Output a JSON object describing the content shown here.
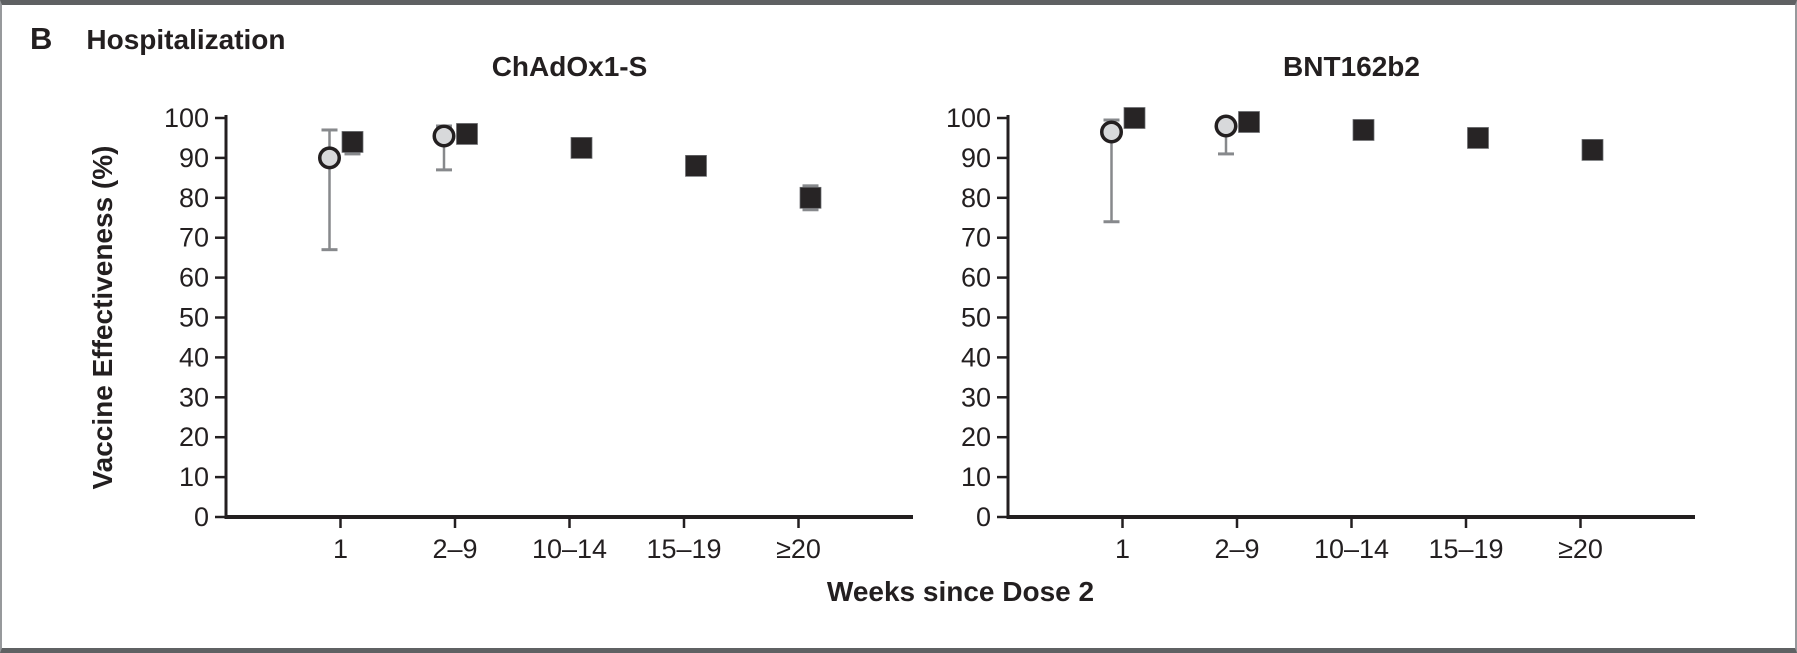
{
  "figure": {
    "panel_label": "B",
    "panel_title": "Hospitalization",
    "x_axis_label": "Weeks since Dose 2",
    "y_axis_label": "Vaccine Effectiveness (%)"
  },
  "colors": {
    "axis": "#231f20",
    "text": "#231f20",
    "error_bar": "#87898c",
    "circle_fill": "#d8d9db",
    "circle_stroke": "#231f20",
    "square_fill": "#272425",
    "square_stroke": "#6d6e71",
    "frame_border": "#5f6163"
  },
  "chart_data": [
    {
      "type": "scatter",
      "title": "ChAdOx1-S",
      "categories": [
        "1",
        "2–9",
        "10–14",
        "15–19",
        "≥20"
      ],
      "xlabel": "Weeks since Dose 2",
      "ylabel": "Vaccine Effectiveness (%)",
      "ylim": [
        0,
        100
      ],
      "ytick_step": 10,
      "grid": false,
      "legend": "none",
      "series": [
        {
          "name": "gray-circle",
          "marker": "circle",
          "points": [
            {
              "category": "1",
              "value": 90,
              "ci_low": 67,
              "ci_high": 97
            },
            {
              "category": "2–9",
              "value": 95.5,
              "ci_low": 87,
              "ci_high": 98
            }
          ]
        },
        {
          "name": "black-square",
          "marker": "square",
          "points": [
            {
              "category": "1",
              "value": 94,
              "ci_low": 91,
              "ci_high": 96
            },
            {
              "category": "2–9",
              "value": 96,
              "ci_low": 94,
              "ci_high": 98
            },
            {
              "category": "10–14",
              "value": 92.5,
              "ci_low": 90.5,
              "ci_high": 94.5
            },
            {
              "category": "15–19",
              "value": 88,
              "ci_low": 86,
              "ci_high": 90
            },
            {
              "category": "≥20",
              "value": 80,
              "ci_low": 77,
              "ci_high": 83
            }
          ]
        }
      ]
    },
    {
      "type": "scatter",
      "title": "BNT162b2",
      "categories": [
        "1",
        "2–9",
        "10–14",
        "15–19",
        "≥20"
      ],
      "xlabel": "Weeks since Dose 2",
      "ylabel": "Vaccine Effectiveness (%)",
      "ylim": [
        0,
        100
      ],
      "ytick_step": 10,
      "grid": false,
      "legend": "none",
      "series": [
        {
          "name": "gray-circle",
          "marker": "circle",
          "points": [
            {
              "category": "1",
              "value": 96.5,
              "ci_low": 74,
              "ci_high": 99.5
            },
            {
              "category": "2–9",
              "value": 98,
              "ci_low": 91,
              "ci_high": 99.5
            }
          ]
        },
        {
          "name": "black-square",
          "marker": "square",
          "points": [
            {
              "category": "1",
              "value": 100,
              "ci_low": 98.5,
              "ci_high": 100
            },
            {
              "category": "2–9",
              "value": 99,
              "ci_low": 97.5,
              "ci_high": 100
            },
            {
              "category": "10–14",
              "value": 97,
              "ci_low": 95,
              "ci_high": 99
            },
            {
              "category": "15–19",
              "value": 95,
              "ci_low": 93,
              "ci_high": 97
            },
            {
              "category": "≥20",
              "value": 92,
              "ci_low": 90,
              "ci_high": 94
            }
          ]
        }
      ]
    }
  ]
}
